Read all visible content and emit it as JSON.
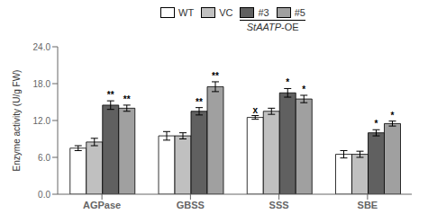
{
  "chart_data": {
    "type": "bar",
    "categories": [
      "AGPase",
      "GBSS",
      "SSS",
      "SBE"
    ],
    "ylabel": "Enzyme activity (U/g FW)",
    "ylim": [
      0,
      24.0
    ],
    "yticks": [
      {
        "value": 0.0,
        "label": "0.0"
      },
      {
        "value": 6.0,
        "label": "6.0"
      },
      {
        "value": 12.0,
        "label": "12.0"
      },
      {
        "value": 18.0,
        "label": "18.0"
      },
      {
        "value": 24.0,
        "label": "24.0"
      }
    ],
    "grid": false,
    "series": [
      {
        "name": "WT",
        "color": "#ffffff",
        "values": [
          7.5,
          9.5,
          12.5,
          6.5
        ],
        "errors": [
          0.4,
          0.7,
          0.3,
          0.6
        ],
        "significance": [
          null,
          null,
          "x",
          null
        ]
      },
      {
        "name": "VC",
        "color": "#c0c0c0",
        "values": [
          8.5,
          9.5,
          13.5,
          6.5
        ],
        "errors": [
          0.6,
          0.5,
          0.5,
          0.5
        ]
      },
      {
        "name": "#3",
        "color": "#606060",
        "values": [
          14.5,
          13.5,
          16.5,
          10.0
        ],
        "errors": [
          0.7,
          0.6,
          0.7,
          0.5
        ],
        "significance": [
          "**",
          "**",
          "*",
          "*"
        ]
      },
      {
        "name": "#5",
        "color": "#a0a0a0",
        "values": [
          14.0,
          17.5,
          15.5,
          11.5
        ],
        "errors": [
          0.5,
          0.8,
          0.6,
          0.4
        ],
        "significance": [
          "**",
          "**",
          "*",
          "*"
        ]
      }
    ],
    "annotations": [
      {
        "text": "StAATP-OE",
        "series": [
          "#3",
          "#5"
        ]
      }
    ]
  }
}
